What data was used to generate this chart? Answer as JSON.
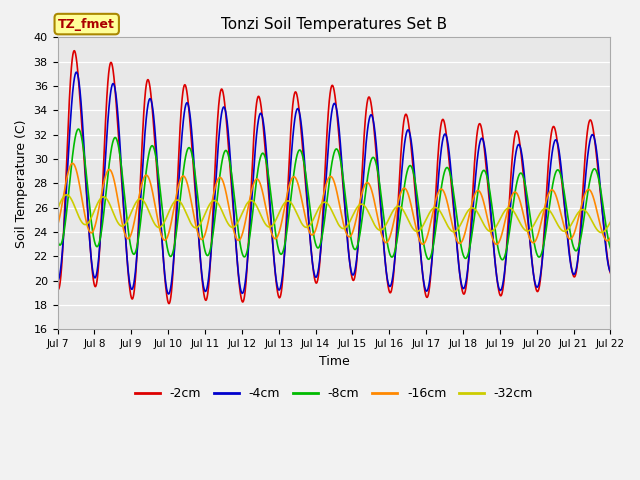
{
  "title": "Tonzi Soil Temperatures Set B",
  "xlabel": "Time",
  "ylabel": "Soil Temperature (C)",
  "ylim": [
    16,
    40
  ],
  "xlim": [
    0,
    360
  ],
  "fig_bg": "#f2f2f2",
  "plot_bg": "#e8e8e8",
  "grid_color": "#ffffff",
  "annotation_text": "TZ_fmet",
  "annotation_bg": "#ffff99",
  "annotation_edge": "#cc0000",
  "series": [
    {
      "label": "-2cm",
      "color": "#dd0000",
      "lw": 1.2
    },
    {
      "label": "-4cm",
      "color": "#0000cc",
      "lw": 1.2
    },
    {
      "label": "-8cm",
      "color": "#00bb00",
      "lw": 1.2
    },
    {
      "label": "-16cm",
      "color": "#ff8800",
      "lw": 1.2
    },
    {
      "label": "-32cm",
      "color": "#cccc00",
      "lw": 1.2
    }
  ],
  "xtick_positions": [
    0,
    24,
    48,
    72,
    96,
    120,
    144,
    168,
    192,
    216,
    240,
    264,
    288,
    312,
    336,
    360
  ],
  "xtick_labels": [
    "Jul 7",
    "Jul 8",
    "Jul 9",
    "Jul 10",
    "Jul 11",
    "Jul 12",
    "Jul 13",
    "Jul 14",
    "Jul 15",
    "Jul 16",
    "Jul 17",
    "Jul 18",
    "Jul 19",
    "Jul 20",
    "Jul 21",
    "Jul 22"
  ]
}
